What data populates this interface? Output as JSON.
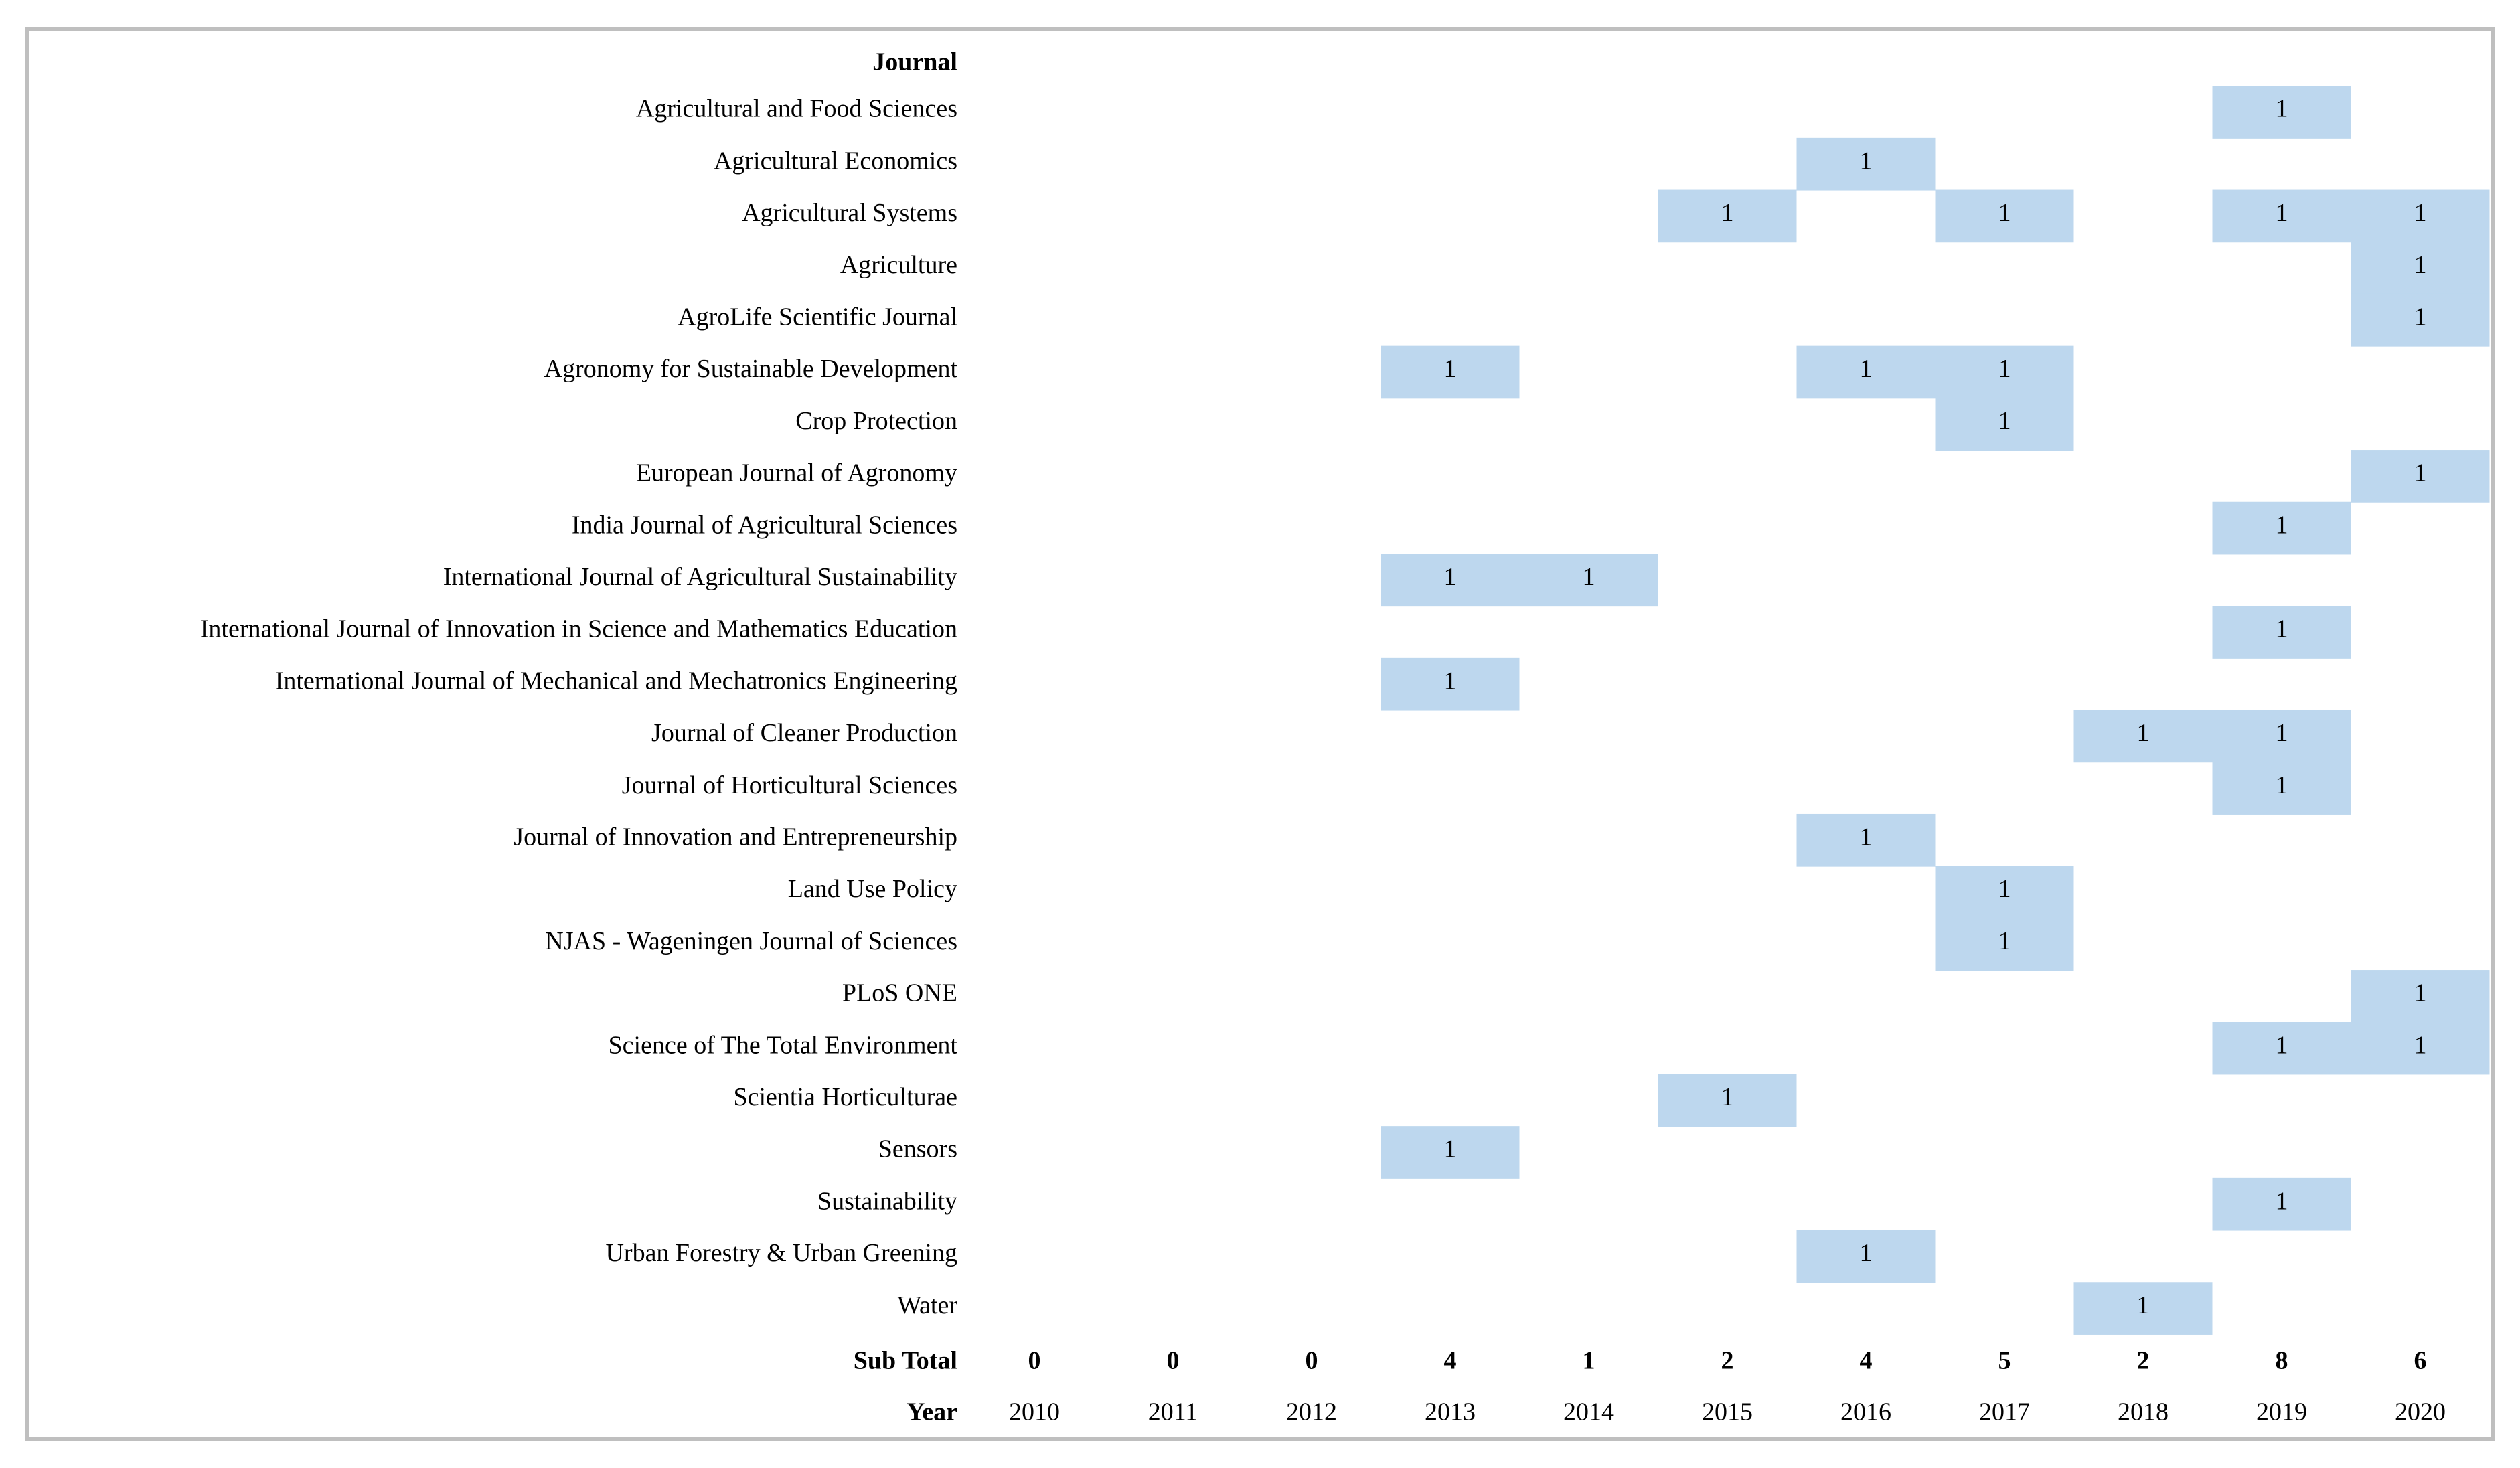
{
  "table": {
    "header": "Journal",
    "rows": [
      {
        "journal": "Agricultural and Food Sciences",
        "cells": [
          null,
          null,
          null,
          null,
          null,
          null,
          null,
          null,
          null,
          1,
          null
        ]
      },
      {
        "journal": "Agricultural Economics",
        "cells": [
          null,
          null,
          null,
          null,
          null,
          null,
          1,
          null,
          null,
          null,
          null
        ]
      },
      {
        "journal": "Agricultural Systems",
        "cells": [
          null,
          null,
          null,
          null,
          null,
          1,
          null,
          1,
          null,
          1,
          1
        ]
      },
      {
        "journal": "Agriculture",
        "cells": [
          null,
          null,
          null,
          null,
          null,
          null,
          null,
          null,
          null,
          null,
          1
        ]
      },
      {
        "journal": "AgroLife Scientific Journal",
        "cells": [
          null,
          null,
          null,
          null,
          null,
          null,
          null,
          null,
          null,
          null,
          1
        ]
      },
      {
        "journal": "Agronomy for Sustainable Development",
        "cells": [
          null,
          null,
          null,
          1,
          null,
          null,
          1,
          1,
          null,
          null,
          null
        ]
      },
      {
        "journal": "Crop Protection",
        "cells": [
          null,
          null,
          null,
          null,
          null,
          null,
          null,
          1,
          null,
          null,
          null
        ]
      },
      {
        "journal": "European Journal of Agronomy",
        "cells": [
          null,
          null,
          null,
          null,
          null,
          null,
          null,
          null,
          null,
          null,
          1
        ]
      },
      {
        "journal": "India Journal of Agricultural Sciences",
        "cells": [
          null,
          null,
          null,
          null,
          null,
          null,
          null,
          null,
          null,
          1,
          null
        ]
      },
      {
        "journal": "International Journal of Agricultural Sustainability",
        "cells": [
          null,
          null,
          null,
          1,
          1,
          null,
          null,
          null,
          null,
          null,
          null
        ]
      },
      {
        "journal": "International Journal of Innovation in Science and Mathematics Education",
        "cells": [
          null,
          null,
          null,
          null,
          null,
          null,
          null,
          null,
          null,
          1,
          null
        ]
      },
      {
        "journal": "International Journal of Mechanical and Mechatronics Engineering",
        "cells": [
          null,
          null,
          null,
          1,
          null,
          null,
          null,
          null,
          null,
          null,
          null
        ]
      },
      {
        "journal": "Journal of Cleaner Production",
        "cells": [
          null,
          null,
          null,
          null,
          null,
          null,
          null,
          null,
          1,
          1,
          null
        ]
      },
      {
        "journal": "Journal of Horticultural Sciences",
        "cells": [
          null,
          null,
          null,
          null,
          null,
          null,
          null,
          null,
          null,
          1,
          null
        ]
      },
      {
        "journal": "Journal of Innovation and Entrepreneurship",
        "cells": [
          null,
          null,
          null,
          null,
          null,
          null,
          1,
          null,
          null,
          null,
          null
        ]
      },
      {
        "journal": "Land Use Policy",
        "cells": [
          null,
          null,
          null,
          null,
          null,
          null,
          null,
          1,
          null,
          null,
          null
        ]
      },
      {
        "journal": "NJAS - Wageningen Journal of Sciences",
        "cells": [
          null,
          null,
          null,
          null,
          null,
          null,
          null,
          1,
          null,
          null,
          null
        ]
      },
      {
        "journal": "PLoS ONE",
        "cells": [
          null,
          null,
          null,
          null,
          null,
          null,
          null,
          null,
          null,
          null,
          1
        ]
      },
      {
        "journal": "Science of The Total Environment",
        "cells": [
          null,
          null,
          null,
          null,
          null,
          null,
          null,
          null,
          null,
          1,
          1
        ]
      },
      {
        "journal": "Scientia Horticulturae",
        "cells": [
          null,
          null,
          null,
          null,
          null,
          1,
          null,
          null,
          null,
          null,
          null
        ]
      },
      {
        "journal": "Sensors",
        "cells": [
          null,
          null,
          null,
          1,
          null,
          null,
          null,
          null,
          null,
          null,
          null
        ]
      },
      {
        "journal": "Sustainability",
        "cells": [
          null,
          null,
          null,
          null,
          null,
          null,
          null,
          null,
          null,
          1,
          null
        ]
      },
      {
        "journal": "Urban Forestry & Urban Greening",
        "cells": [
          null,
          null,
          null,
          null,
          null,
          null,
          1,
          null,
          null,
          null,
          null
        ]
      },
      {
        "journal": "Water",
        "cells": [
          null,
          null,
          null,
          null,
          null,
          null,
          null,
          null,
          1,
          null,
          null
        ]
      }
    ],
    "subtotal": {
      "label": "Sub Total",
      "values": [
        0,
        0,
        0,
        4,
        1,
        2,
        4,
        5,
        2,
        8,
        6
      ]
    },
    "years": {
      "label": "Year",
      "values": [
        2010,
        2011,
        2012,
        2013,
        2014,
        2015,
        2016,
        2017,
        2018,
        2019,
        2020
      ]
    }
  }
}
